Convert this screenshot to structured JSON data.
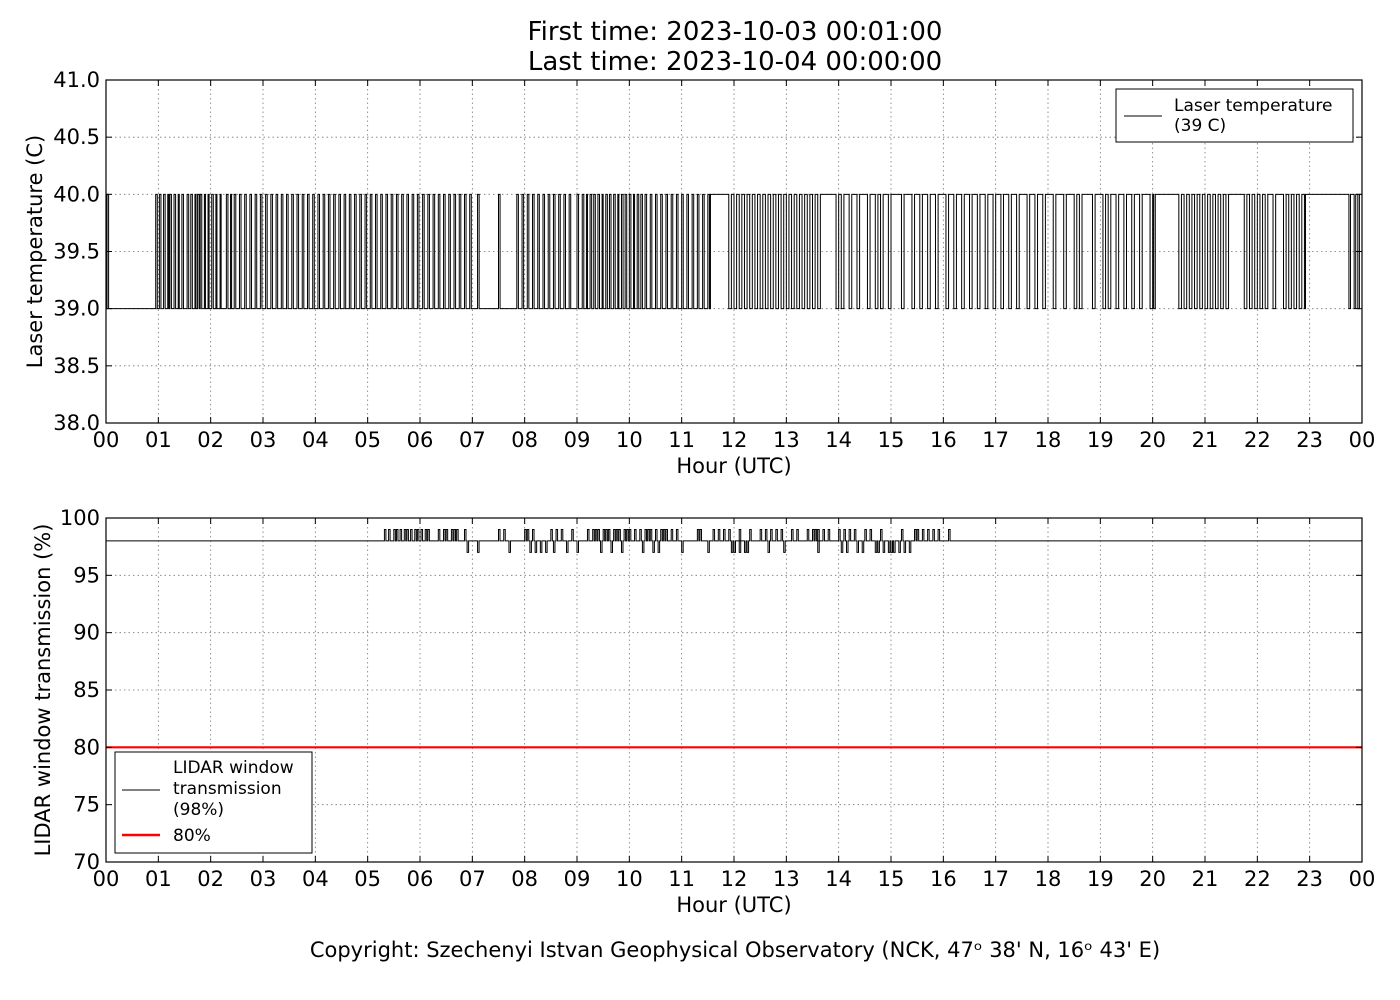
{
  "header": {
    "title_line1": "First time: 2023-10-03 00:01:00",
    "title_line2": "Last time: 2023-10-04 00:00:00"
  },
  "footer": {
    "copyright": "Copyright: Szechenyi Istvan Geophysical Observatory (NCK, 47ᵒ 38' N, 16ᵒ 43' E)"
  },
  "chart_data": [
    {
      "type": "line",
      "xlabel": "Hour (UTC)",
      "ylabel": "Laser temperature (C)",
      "xlim": [
        0,
        24
      ],
      "ylim": [
        38.0,
        41.0
      ],
      "x_ticks": [
        "00",
        "01",
        "02",
        "03",
        "04",
        "05",
        "06",
        "07",
        "08",
        "09",
        "10",
        "11",
        "12",
        "13",
        "14",
        "15",
        "16",
        "17",
        "18",
        "19",
        "20",
        "21",
        "22",
        "23",
        "00"
      ],
      "y_ticks": [
        "38.0",
        "38.5",
        "39.0",
        "39.5",
        "40.0",
        "40.5",
        "41.0"
      ],
      "grid": true,
      "legend_position": "top-right",
      "series": [
        {
          "name": "Laser temperature\n(39 C)",
          "color": "#000000",
          "value_low": 39.0,
          "value_high": 40.0,
          "x": [
            0.02,
            0.05,
            0.95,
            0.98,
            1.02,
            1.05,
            1.1,
            1.13,
            1.18,
            1.2,
            1.22,
            1.25,
            1.3,
            1.33,
            1.38,
            1.4,
            1.45,
            1.48,
            1.55,
            1.58,
            1.62,
            1.65,
            1.7,
            1.72,
            1.75,
            1.78,
            1.8,
            1.83,
            1.88,
            1.9,
            1.95,
            1.97,
            2.02,
            2.05,
            2.1,
            2.12,
            2.18,
            2.2,
            2.3,
            2.33,
            2.38,
            2.4,
            2.45,
            2.48,
            2.55,
            2.58,
            2.65,
            2.68,
            2.75,
            2.78,
            2.85,
            2.88,
            2.95,
            2.98,
            3.05,
            3.08,
            3.15,
            3.18,
            3.25,
            3.28,
            3.35,
            3.38,
            3.45,
            3.48,
            3.55,
            3.58,
            3.65,
            3.68,
            3.75,
            3.78,
            3.85,
            3.88,
            3.95,
            3.98,
            4.05,
            4.08,
            4.15,
            4.18,
            4.25,
            4.28,
            4.35,
            4.38,
            4.45,
            4.48,
            4.55,
            4.58,
            4.65,
            4.68,
            4.75,
            4.78,
            4.85,
            4.88,
            4.95,
            4.98,
            5.05,
            5.08,
            5.15,
            5.18,
            5.25,
            5.28,
            5.35,
            5.38,
            5.45,
            5.48,
            5.55,
            5.58,
            5.65,
            5.68,
            5.75,
            5.78,
            5.85,
            5.88,
            5.95,
            5.98,
            6.05,
            6.08,
            6.15,
            6.18,
            6.25,
            6.28,
            6.35,
            6.38,
            6.45,
            6.48,
            6.55,
            6.58,
            6.65,
            6.68,
            6.75,
            6.78,
            6.85,
            6.88,
            6.95,
            6.98,
            7.1,
            7.13,
            7.5,
            7.53,
            7.85,
            7.88,
            7.95,
            7.98,
            8.05,
            8.08,
            8.15,
            8.18,
            8.25,
            8.28,
            8.35,
            8.38,
            8.45,
            8.48,
            8.55,
            8.58,
            8.65,
            8.68,
            8.75,
            8.78,
            8.85,
            8.88,
            9.0,
            9.03,
            9.1,
            9.13,
            9.18,
            9.2,
            9.25,
            9.28,
            9.32,
            9.35,
            9.4,
            9.43,
            9.48,
            9.5,
            9.55,
            9.58,
            9.62,
            9.65,
            9.7,
            9.73,
            9.78,
            9.8,
            9.85,
            9.88,
            9.92,
            9.95,
            10.0,
            10.03,
            10.08,
            10.1,
            10.15,
            10.18,
            10.22,
            10.25,
            10.3,
            10.33,
            10.4,
            10.43,
            10.5,
            10.53,
            10.6,
            10.63,
            10.7,
            10.73,
            10.8,
            10.83,
            10.9,
            10.93,
            11.0,
            11.03,
            11.1,
            11.13,
            11.2,
            11.23,
            11.3,
            11.33,
            11.4,
            11.43,
            11.5,
            11.53,
            11.55,
            11.9,
            11.95,
            12.0,
            12.05,
            12.1,
            12.15,
            12.2,
            12.25,
            12.3,
            12.35,
            12.4,
            12.45,
            12.5,
            12.55,
            12.6,
            12.65,
            12.7,
            12.75,
            12.8,
            12.85,
            12.9,
            12.95,
            13.0,
            13.05,
            13.1,
            13.15,
            13.2,
            13.25,
            13.3,
            13.35,
            13.4,
            13.45,
            13.5,
            13.55,
            13.6,
            13.65,
            13.95,
            14.0,
            14.05,
            14.1,
            14.2,
            14.25,
            14.35,
            14.4,
            14.55,
            14.6,
            14.7,
            14.75,
            14.8,
            14.85,
            14.95,
            15.0,
            15.2,
            15.25,
            15.4,
            15.45,
            15.55,
            15.6,
            15.7,
            15.75,
            15.85,
            15.9,
            16.05,
            16.1,
            16.2,
            16.25,
            16.35,
            16.4,
            16.5,
            16.55,
            16.65,
            16.7,
            16.8,
            16.85,
            16.95,
            17.0,
            17.1,
            17.15,
            17.25,
            17.3,
            17.4,
            17.45,
            17.6,
            17.65,
            17.75,
            17.8,
            17.9,
            17.95,
            18.1,
            18.15,
            18.3,
            18.35,
            18.5,
            18.55,
            18.6,
            18.65,
            18.85,
            18.9,
            19.05,
            19.1,
            19.15,
            19.2,
            19.3,
            19.35,
            19.45,
            19.5,
            19.6,
            19.65,
            19.75,
            19.8,
            19.95,
            20.0,
            20.02,
            20.05,
            20.5,
            20.55,
            20.6,
            20.65,
            20.7,
            20.75,
            20.8,
            20.85,
            20.9,
            20.95,
            21.0,
            21.05,
            21.1,
            21.15,
            21.2,
            21.25,
            21.3,
            21.35,
            21.4,
            21.45,
            21.75,
            21.8,
            21.85,
            21.9,
            21.95,
            22.0,
            22.05,
            22.1,
            22.15,
            22.2,
            22.3,
            22.35,
            22.5,
            22.55,
            22.6,
            22.65,
            22.7,
            22.75,
            22.8,
            22.85,
            22.9,
            22.92,
            23.75,
            23.78,
            23.85,
            23.88,
            23.92,
            23.95
          ]
        }
      ]
    },
    {
      "type": "line",
      "xlabel": "Hour (UTC)",
      "ylabel": "LIDAR window transmission (%)",
      "xlim": [
        0,
        24
      ],
      "ylim": [
        70,
        100
      ],
      "x_ticks": [
        "00",
        "01",
        "02",
        "03",
        "04",
        "05",
        "06",
        "07",
        "08",
        "09",
        "10",
        "11",
        "12",
        "13",
        "14",
        "15",
        "16",
        "17",
        "18",
        "19",
        "20",
        "21",
        "22",
        "23",
        "00"
      ],
      "y_ticks": [
        "70",
        "75",
        "80",
        "85",
        "90",
        "95",
        "100"
      ],
      "grid": true,
      "legend_position": "bottom-left",
      "series": [
        {
          "name": "LIDAR window\ntransmission\n(98%)",
          "color": "#000000",
          "baseline": 98,
          "active_range": [
            5.3,
            16.1
          ],
          "up_spikes_to": 99,
          "up_spike_hours": [
            5.32,
            5.4,
            5.5,
            5.55,
            5.62,
            5.7,
            5.75,
            5.82,
            5.9,
            5.95,
            6.02,
            6.1,
            6.15,
            6.35,
            6.45,
            6.5,
            6.6,
            6.65,
            6.7,
            6.85,
            7.5,
            7.6,
            8.0,
            8.05,
            8.15,
            8.5,
            8.6,
            8.7,
            8.9,
            9.2,
            9.3,
            9.35,
            9.4,
            9.5,
            9.55,
            9.6,
            9.7,
            9.75,
            9.8,
            9.9,
            9.95,
            10.0,
            10.1,
            10.2,
            10.3,
            10.35,
            10.4,
            10.5,
            10.6,
            10.65,
            10.7,
            10.8,
            10.9,
            11.3,
            11.35,
            11.6,
            11.7,
            11.8,
            11.9,
            12.1,
            12.3,
            12.5,
            12.6,
            12.7,
            12.8,
            12.9,
            13.1,
            13.2,
            13.4,
            13.5,
            13.55,
            13.6,
            13.7,
            13.8,
            14.0,
            14.1,
            14.2,
            14.3,
            14.5,
            14.6,
            14.8,
            15.2,
            15.45,
            15.5,
            15.6,
            15.7,
            15.8,
            15.9,
            16.1
          ],
          "down_spikes_to": 97,
          "down_spike_hours": [
            6.9,
            7.1,
            7.7,
            8.1,
            8.2,
            8.3,
            8.4,
            8.55,
            8.8,
            9.0,
            9.45,
            9.65,
            9.85,
            10.25,
            10.45,
            10.55,
            11.0,
            11.5,
            11.95,
            12.0,
            12.1,
            12.2,
            12.25,
            12.65,
            12.95,
            13.6,
            14.05,
            14.15,
            14.35,
            14.45,
            14.7,
            14.75,
            14.85,
            14.95,
            15.0,
            15.05,
            15.15,
            15.25,
            15.35
          ]
        },
        {
          "name": "80%",
          "color": "#ff0000",
          "y": 80
        }
      ]
    }
  ]
}
